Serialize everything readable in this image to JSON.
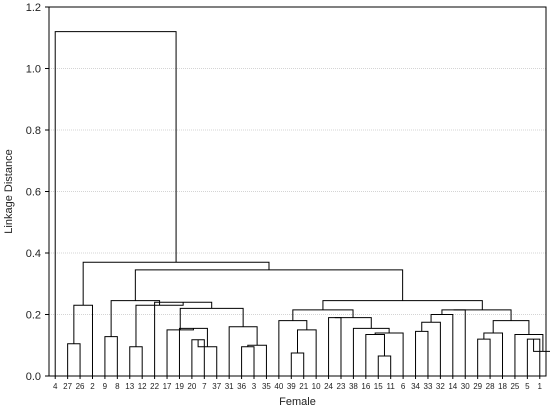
{
  "chart_data": {
    "type": "dendrogram",
    "xlabel": "Female",
    "ylabel": "Linkage Distance",
    "ylim": [
      0.0,
      1.2
    ],
    "yticks": [
      "0.0",
      "0.2",
      "0.4",
      "0.6",
      "0.8",
      "1.0",
      "1.2"
    ],
    "grid": true,
    "leaves": [
      "4",
      "27",
      "26",
      "2",
      "9",
      "8",
      "13",
      "12",
      "22",
      "17",
      "19",
      "20",
      "7",
      "37",
      "31",
      "36",
      "3",
      "35",
      "40",
      "39",
      "21",
      "10",
      "24",
      "23",
      "38",
      "16",
      "15",
      "11",
      "6",
      "34",
      "33",
      "32",
      "14",
      "30",
      "29",
      "28",
      "18",
      "25",
      "5",
      "1"
    ],
    "merges": [
      {
        "children": [
          1,
          2
        ],
        "height": 0.105
      },
      {
        "children": [
          3,
          "m0"
        ],
        "height": 0.23
      },
      {
        "children": [
          4,
          5
        ],
        "height": 0.128
      },
      {
        "children": [
          6,
          7
        ],
        "height": 0.095
      },
      {
        "children": [
          11,
          12
        ],
        "height": 0.118
      },
      {
        "children": [
          13,
          "m4"
        ],
        "height": 0.095
      },
      {
        "children": [
          10,
          "m5"
        ],
        "height": 0.155
      },
      {
        "children": [
          9,
          "m6"
        ],
        "height": 0.15
      },
      {
        "children": [
          15,
          16
        ],
        "height": 0.095
      },
      {
        "children": [
          17,
          "m8"
        ],
        "height": 0.1
      },
      {
        "children": [
          14,
          "m9"
        ],
        "height": 0.16
      },
      {
        "children": [
          "m7",
          "m10"
        ],
        "height": 0.22
      },
      {
        "children": [
          8,
          "m11"
        ],
        "height": 0.24
      },
      {
        "children": [
          "m3",
          "m12"
        ],
        "height": 0.23
      },
      {
        "children": [
          "m2",
          "m13"
        ],
        "height": 0.245
      },
      {
        "children": [
          19,
          20
        ],
        "height": 0.075
      },
      {
        "children": [
          "m15",
          21
        ],
        "height": 0.15
      },
      {
        "children": [
          18,
          "m16"
        ],
        "height": 0.18
      },
      {
        "children": [
          22,
          23
        ],
        "height": 0.19
      },
      {
        "children": [
          26,
          27
        ],
        "height": 0.065
      },
      {
        "children": [
          25,
          "m19"
        ],
        "height": 0.135
      },
      {
        "children": [
          28,
          "m20"
        ],
        "height": 0.14
      },
      {
        "children": [
          24,
          "m21"
        ],
        "height": 0.155
      },
      {
        "children": [
          "m18",
          "m22"
        ],
        "height": 0.19
      },
      {
        "children": [
          "m17",
          "m23"
        ],
        "height": 0.215
      },
      {
        "children": [
          29,
          30
        ],
        "height": 0.145
      },
      {
        "children": [
          31,
          "m25"
        ],
        "height": 0.175
      },
      {
        "children": [
          32,
          "m26"
        ],
        "height": 0.2
      },
      {
        "children": [
          33,
          "m27"
        ],
        "height": 0.215
      },
      {
        "children": [
          34,
          35
        ],
        "height": 0.12
      },
      {
        "children": [
          "m29",
          36
        ],
        "height": 0.14
      },
      {
        "children": [
          38,
          39
        ],
        "height": 0.12
      },
      {
        "children": [
          40,
          "m31"
        ],
        "height": 0.08
      },
      {
        "children": [
          37,
          "m32"
        ],
        "height": 0.135
      },
      {
        "children": [
          "m30",
          "m33"
        ],
        "height": 0.18
      },
      {
        "children": [
          "m28",
          "m34"
        ],
        "height": 0.215
      },
      {
        "children": [
          "m24",
          "m35"
        ],
        "height": 0.245
      },
      {
        "children": [
          "m14",
          "m36"
        ],
        "height": 0.345
      },
      {
        "children": [
          "m1",
          "m37"
        ],
        "height": 0.37
      },
      {
        "children": [
          0,
          "m38"
        ],
        "height": 1.12
      }
    ]
  }
}
